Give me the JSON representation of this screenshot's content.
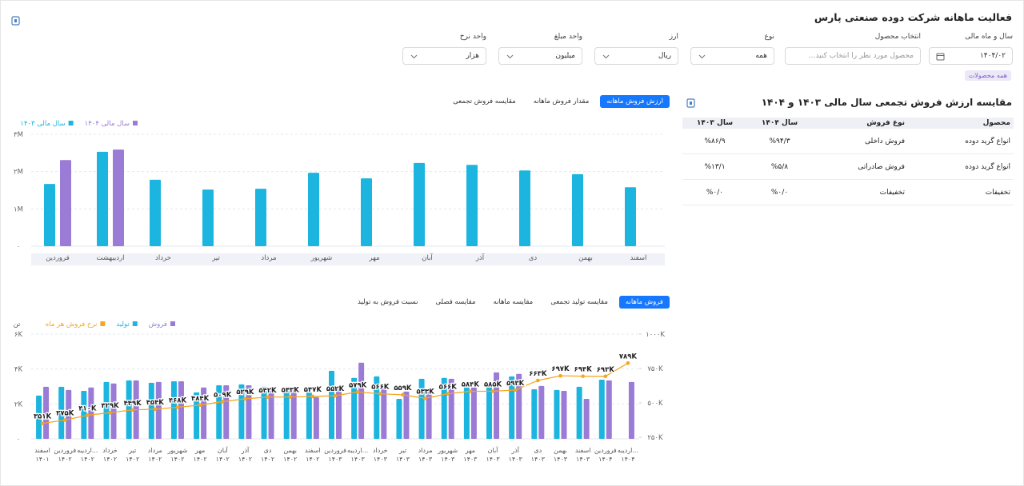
{
  "header": {
    "title": "فعالیت ماهانه شرکت دوده صنعتی پارس",
    "filters": [
      {
        "label": "سال و ماه مالی",
        "value": "۱۴۰۴/۰۲"
      },
      {
        "label": "انتخاب محصول",
        "placeholder": "محصول مورد نظر را انتخاب کنید..."
      },
      {
        "label": "نوع",
        "value": "همه"
      },
      {
        "label": "ارز",
        "value": "ریال"
      },
      {
        "label": "واحد مبلغ",
        "value": "میلیون"
      },
      {
        "label": "واحد نرخ",
        "value": "هزار"
      }
    ],
    "tag": "همه محصولات"
  },
  "table": {
    "title": "مقایسه ارزش فروش تجمعی سال مالی ۱۴۰۳ و ۱۴۰۴",
    "columns": [
      "محصول",
      "نوع فروش",
      "سال ۱۴۰۴",
      "سال ۱۴۰۳"
    ],
    "rows": [
      [
        "انواع گرید دوده",
        "فروش داخلی",
        "%۹۴/۳",
        "%۸۶/۹"
      ],
      [
        "انواع گرید دوده",
        "فروش صادراتی",
        "%۵/۸",
        "%۱۳/۱"
      ],
      [
        "تخفیفات",
        "تخفیفات",
        "%۰/۰",
        "%۰/۰"
      ]
    ]
  },
  "chart_data": [
    {
      "type": "bar",
      "tabs": [
        "ارزش فروش ماهانه",
        "مقدار فروش ماهانه",
        "مقایسه فروش تجمعی"
      ],
      "active_tab": 0,
      "categories": [
        "فروردین",
        "اردیبهشت",
        "خرداد",
        "تیر",
        "مرداد",
        "شهریور",
        "مهر",
        "آبان",
        "آذر",
        "دی",
        "بهمن",
        "اسفند"
      ],
      "series": [
        {
          "name": "سال مالی ۱۴۰۴",
          "color": "#9a7bd6",
          "values": [
            2310000,
            2590000,
            null,
            null,
            null,
            null,
            null,
            null,
            null,
            null,
            null,
            null
          ]
        },
        {
          "name": "سال مالی ۱۴۰۳",
          "color": "#1cb5e0",
          "values": [
            1670000,
            2530000,
            1780000,
            1520000,
            1540000,
            1970000,
            1820000,
            2230000,
            2180000,
            2030000,
            1930000,
            1580000
          ]
        }
      ],
      "ylim": [
        0,
        3000000
      ],
      "yticks": [
        {
          "value": 0,
          "label": "۰"
        },
        {
          "value": 1000000,
          "label": "۱M"
        },
        {
          "value": 2000000,
          "label": "۲M"
        },
        {
          "value": 3000000,
          "label": "۳M"
        }
      ],
      "grid": true
    },
    {
      "type": "combo",
      "tabs": [
        "فروش ماهانه",
        "مقایسه تولید تجمعی",
        "مقایسه ماهانه",
        "مقایسه فصلی",
        "نسبت فروش به تولید"
      ],
      "active_tab": 0,
      "ylabel": "تن",
      "categories": [
        [
          "اسفند",
          "۱۴۰۱"
        ],
        [
          "فروردین",
          "۱۴۰۲"
        ],
        [
          "اردیبه...",
          "۱۴۰۲"
        ],
        [
          "خرداد",
          "۱۴۰۲"
        ],
        [
          "تیر",
          "۱۴۰۲"
        ],
        [
          "مرداد",
          "۱۴۰۲"
        ],
        [
          "شهریور",
          "۱۴۰۲"
        ],
        [
          "مهر",
          "۱۴۰۲"
        ],
        [
          "آبان",
          "۱۴۰۲"
        ],
        [
          "آذر",
          "۱۴۰۲"
        ],
        [
          "دی",
          "۱۴۰۲"
        ],
        [
          "بهمن",
          "۱۴۰۲"
        ],
        [
          "اسفند",
          "۱۴۰۲"
        ],
        [
          "فروردین",
          "۱۴۰۳"
        ],
        [
          "اردیبه...",
          "۱۴۰۳"
        ],
        [
          "خرداد",
          "۱۴۰۳"
        ],
        [
          "تیر",
          "۱۴۰۳"
        ],
        [
          "مرداد",
          "۱۴۰۳"
        ],
        [
          "شهریور",
          "۱۴۰۳"
        ],
        [
          "مهر",
          "۱۴۰۳"
        ],
        [
          "آبان",
          "۱۴۰۳"
        ],
        [
          "آذر",
          "۱۴۰۳"
        ],
        [
          "دی",
          "۱۴۰۳"
        ],
        [
          "بهمن",
          "۱۴۰۳"
        ],
        [
          "اسفند",
          "۱۴۰۳"
        ],
        [
          "فروردین",
          "۱۴۰۴"
        ],
        [
          "اردیبه...",
          "۱۴۰۴"
        ]
      ],
      "series": [
        {
          "name": "فروش",
          "color": "#9a7bd6",
          "values": [
            2980,
            2800,
            2940,
            3170,
            3350,
            3260,
            3300,
            2940,
            3070,
            3070,
            2890,
            2940,
            2390,
            2890,
            4360,
            2980,
            2710,
            2800,
            3440,
            2940,
            3810,
            3720,
            3030,
            2750,
            2290,
            3350,
            3260
          ]
        },
        {
          "name": "تولید",
          "color": "#1cb5e0",
          "values": [
            2480,
            2980,
            2750,
            3260,
            3350,
            3210,
            3300,
            2660,
            3070,
            3120,
            2980,
            2890,
            2660,
            3900,
            3490,
            3580,
            2290,
            3440,
            3490,
            2940,
            3030,
            3580,
            2840,
            2800,
            2980,
            3390,
            null
          ]
        },
        {
          "name": "نرخ فروش هر ماه",
          "color": "#f5a623",
          "type": "line",
          "axis": "y2",
          "values": [
            351000,
            375000,
            410000,
            429000,
            449000,
            454000,
            468000,
            484000,
            509000,
            529000,
            542000,
            543000,
            547000,
            552000,
            579000,
            566000,
            559000,
            533000,
            566000,
            584000,
            585000,
            593000,
            663000,
            697000,
            694000,
            693000,
            789000
          ],
          "value_labels": [
            "۳۵۱K",
            "۳۷۵K",
            "۴۱۰K",
            "۴۲۹K",
            "۴۴۹K",
            "۴۵۴K",
            "۴۶۸K",
            "۴۸۴K",
            "۵۰۹K",
            "۵۲۹K",
            "۵۴۲K",
            "۵۴۳K",
            "۵۴۷K",
            "۵۵۲K",
            "۵۷۹K",
            "۵۶۶K",
            "۵۵۹K",
            "۵۳۳K",
            "۵۶۶K",
            "۵۸۴K",
            "۵۸۵K",
            "۵۹۳K",
            "۶۶۳K",
            "۶۹۷K",
            "۶۹۴K",
            "۶۹۳K",
            "۷۸۹K"
          ]
        }
      ],
      "ylim": [
        0,
        6000
      ],
      "yticks": [
        {
          "value": 0,
          "label": "۰"
        },
        {
          "value": 2000,
          "label": "۲K"
        },
        {
          "value": 4000,
          "label": "۴K"
        },
        {
          "value": 6000,
          "label": "۶K"
        }
      ],
      "y2lim": [
        250000,
        1000000
      ],
      "y2ticks": [
        {
          "value": 250000,
          "label": "۲۵۰K"
        },
        {
          "value": 500000,
          "label": "۵۰۰K"
        },
        {
          "value": 750000,
          "label": "۷۵۰K"
        },
        {
          "value": 1000000,
          "label": "۱۰۰۰K"
        }
      ],
      "grid": true
    }
  ]
}
